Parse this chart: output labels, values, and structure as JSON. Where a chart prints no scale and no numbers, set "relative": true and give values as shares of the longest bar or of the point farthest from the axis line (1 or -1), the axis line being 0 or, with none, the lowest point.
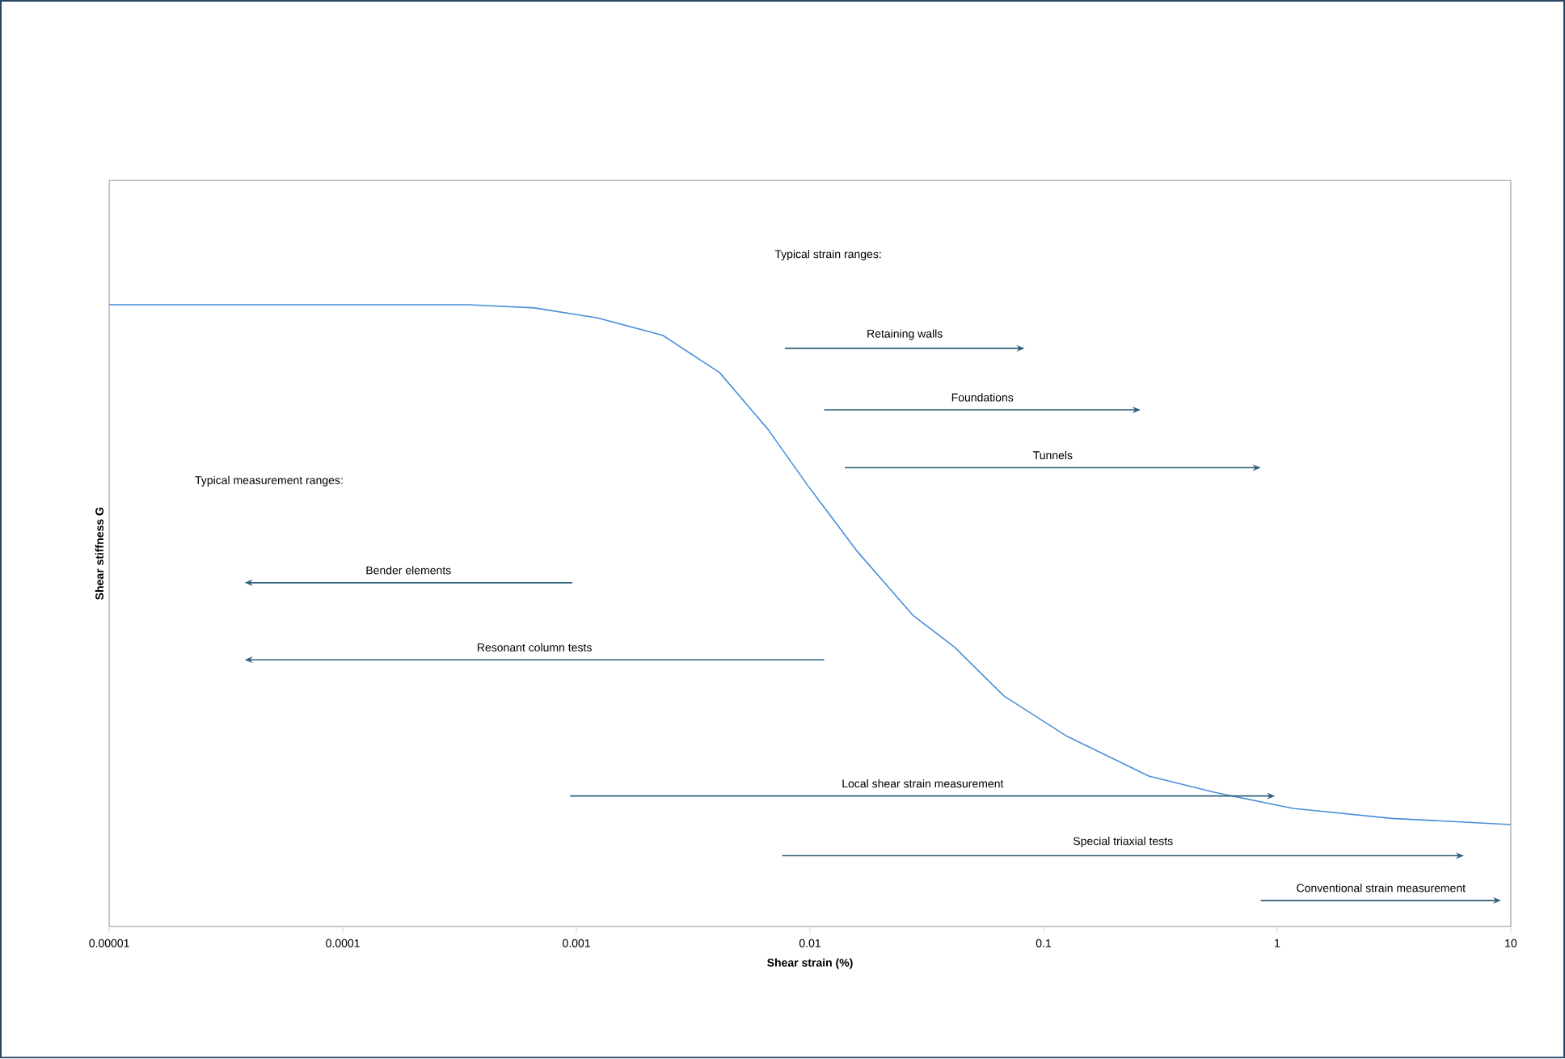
{
  "chart_data": {
    "type": "line",
    "relative": true,
    "log": "x",
    "xlabel": "Shear strain (%)",
    "ylabel": "Shear stiffness G",
    "xlim": [
      1e-05,
      10
    ],
    "xticks": [
      {
        "value": 1e-05,
        "label": "0.00001"
      },
      {
        "value": 0.0001,
        "label": "0.0001"
      },
      {
        "value": 0.001,
        "label": "0.001"
      },
      {
        "value": 0.01,
        "label": "0.01"
      },
      {
        "value": 0.1,
        "label": "0.1"
      },
      {
        "value": 1,
        "label": "1"
      },
      {
        "value": 10,
        "label": "10"
      }
    ],
    "annotations": [
      "Typical strain ranges:",
      "Typical measurement ranges:"
    ],
    "series": [
      {
        "color": "#4a90d9",
        "x": [
          1e-05,
          0.000347,
          0.00066,
          0.00123,
          0.00234,
          0.0041,
          0.0066,
          0.0098,
          0.0158,
          0.0275,
          0.0417,
          0.0676,
          0.126,
          0.282,
          0.537,
          1.17,
          3.09,
          10
        ],
        "values": [
          1.0,
          1.0,
          0.995,
          0.979,
          0.951,
          0.891,
          0.8,
          0.709,
          0.605,
          0.501,
          0.449,
          0.371,
          0.306,
          0.242,
          0.216,
          0.19,
          0.174,
          0.164
        ]
      },
      {
        "name": "Retaining walls",
        "color": "#2e5f7a",
        "x": [
          0.0078,
          0.083
        ],
        "values": [
          0.93,
          0.93
        ]
      },
      {
        "name": "Foundations",
        "color": "#2e5f7a",
        "x": [
          0.0115,
          0.26
        ],
        "values": [
          0.831,
          0.831
        ]
      },
      {
        "name": "Tunnels",
        "color": "#2e5f7a",
        "x": [
          0.0141,
          0.85
        ],
        "values": [
          0.738,
          0.738
        ]
      },
      {
        "name": "Bender elements",
        "color": "#2e5f7a",
        "x": [
          0.00096,
          3.8e-05
        ],
        "values": [
          0.553,
          0.553
        ]
      },
      {
        "name": "Resonant column tests",
        "color": "#2e5f7a",
        "x": [
          0.0115,
          3.8e-05
        ],
        "values": [
          0.429,
          0.429
        ]
      },
      {
        "name": "Local shear strain measurement",
        "color": "#2e5f7a",
        "x": [
          0.00094,
          0.98
        ],
        "values": [
          0.21,
          0.21
        ]
      },
      {
        "name": "Special triaxial tests",
        "color": "#2e5f7a",
        "x": [
          0.0076,
          6.3
        ],
        "values": [
          0.114,
          0.114
        ]
      },
      {
        "name": "Conventional strain measurement",
        "color": "#2e5f7a",
        "x": [
          0.85,
          9.1
        ],
        "values": [
          0.042,
          0.042
        ]
      }
    ]
  }
}
